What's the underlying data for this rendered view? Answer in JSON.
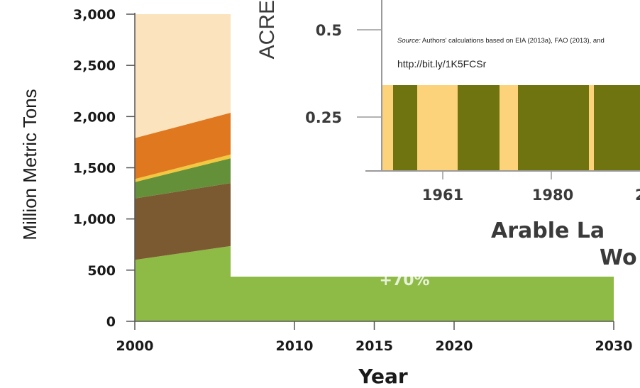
{
  "chart_data": [
    {
      "type": "area",
      "stacked": true,
      "xlabel": "Year",
      "ylabel": "Million Metric Tons",
      "x_ticks": [
        "2000",
        "2010",
        "2015",
        "2020",
        "2030"
      ],
      "y_ticks": [
        "0",
        "500",
        "1,000",
        "1,500",
        "2,000",
        "2,500",
        "3,000"
      ],
      "xlim": [
        2000,
        2030
      ],
      "ylim": [
        0,
        3000
      ],
      "x": [
        2000,
        2008
      ],
      "series": [
        {
          "values": [
            600,
            780
          ],
          "color": "#8dbb46"
        },
        {
          "values": [
            600,
            620
          ],
          "color": "#7c5a31"
        },
        {
          "values": [
            160,
            270
          ],
          "color": "#65903a"
        },
        {
          "values": [
            30,
            40
          ],
          "color": "#f1c83e"
        },
        {
          "values": [
            400,
            410
          ],
          "color": "#e0781f"
        },
        {
          "values": [
            1210,
            880
          ],
          "color": "#fbe3bd"
        }
      ],
      "annotation": "+70%",
      "grid": false,
      "legend": "none"
    },
    {
      "type": "bar",
      "xlabel_line1": "Arable La",
      "xlabel_line2": "Wo",
      "ylabel": "ACRE",
      "x_ticks": [
        "1961",
        "1980",
        "2"
      ],
      "y_ticks": [
        "0.25",
        "0.5"
      ],
      "bar_color": "#6f7310",
      "gap_color": "#fcd27a",
      "grid": false,
      "legend": "none"
    }
  ],
  "source": {
    "label": "Source:",
    "text": " Authors' calculations based on EIA (2013a), FAO (2013), and"
  },
  "url": "http://bit.ly/1K5FCSr"
}
